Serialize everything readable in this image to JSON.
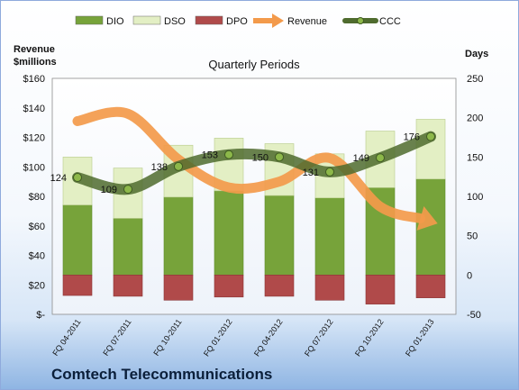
{
  "company_name": "Comtech Telecommunications",
  "chart_data": {
    "type": "bar",
    "subtitle": "Quarterly Periods",
    "left_axis_label_line1": "Revenue",
    "left_axis_label_line2": "$millions",
    "right_axis_label": "Days",
    "left_axis": {
      "min": 0,
      "max": 160,
      "step": 20,
      "tick_labels": [
        "$-",
        "$20",
        "$40",
        "$60",
        "$80",
        "$100",
        "$120",
        "$140",
        "$160"
      ]
    },
    "right_axis": {
      "min": -50,
      "max": 250,
      "step": 50,
      "tick_labels": [
        "-50",
        "0",
        "50",
        "100",
        "150",
        "200",
        "250"
      ]
    },
    "categories": [
      "FQ 04-2011",
      "FQ 07-2011",
      "FQ 10-2011",
      "FQ 01-2012",
      "FQ 04-2012",
      "FQ 07-2012",
      "FQ 10-2012",
      "FQ 01-2013"
    ],
    "series": [
      {
        "name": "DIO",
        "axis": "days",
        "kind": "stacked-bar",
        "color": "#77a33a",
        "values": [
          89,
          72,
          99,
          107,
          101,
          98,
          111,
          122
        ]
      },
      {
        "name": "DSO",
        "axis": "days",
        "kind": "stacked-bar",
        "color": "#e3efc4",
        "values": [
          61,
          64,
          66,
          67,
          66,
          56,
          72,
          76
        ]
      },
      {
        "name": "DPO",
        "axis": "days",
        "kind": "negative-bar",
        "color": "#b04a4a",
        "values": [
          -26,
          -27,
          -32,
          -28,
          -27,
          -32,
          -37,
          -29
        ]
      },
      {
        "name": "Revenue",
        "axis": "revenue",
        "kind": "arrow-line",
        "color": "#f39a4b",
        "values": [
          131,
          136,
          105,
          86,
          90,
          106,
          73,
          63
        ]
      },
      {
        "name": "CCC",
        "axis": "days",
        "kind": "line",
        "color": "#4f6b2e",
        "values": [
          124,
          109,
          138,
          153,
          150,
          131,
          149,
          176
        ],
        "labels": [
          "124",
          "109",
          "138",
          "153",
          "150",
          "131",
          "149",
          "176"
        ]
      }
    ],
    "legend": [
      "DIO",
      "DSO",
      "DPO",
      "Revenue",
      "CCC"
    ],
    "legend_position": "top",
    "grid": false
  }
}
